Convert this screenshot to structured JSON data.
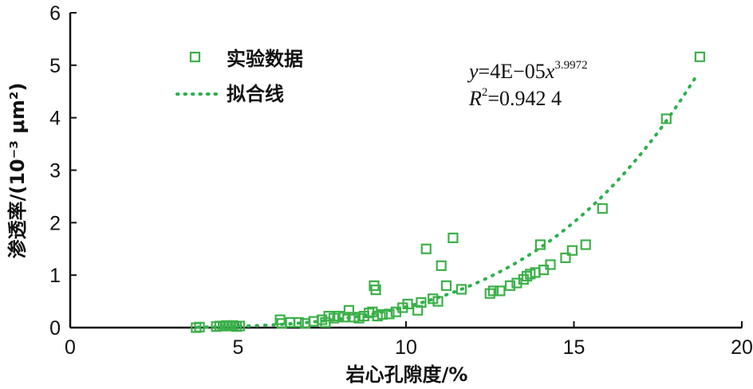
{
  "chart_data": {
    "type": "scatter",
    "xlabel": "岩心孔隙度/%",
    "ylabel": "渗透率/(10⁻³ μm²)",
    "xlim": [
      0,
      20
    ],
    "ylim": [
      0,
      6
    ],
    "x_ticks": [
      "0",
      "5",
      "10",
      "15",
      "20"
    ],
    "y_ticks": [
      "0",
      "1",
      "2",
      "3",
      "4",
      "5",
      "6"
    ],
    "legend": {
      "position": "top-left",
      "entries": [
        "实验数据",
        "拟合线"
      ]
    },
    "annotation": {
      "equation_y": "y",
      "equation_mid": "=4E−05",
      "equation_x": "x",
      "equation_exp": "3.9972",
      "r2_label": "R",
      "r2_sup": "2",
      "r2_value": "=0.942 4"
    },
    "fit": {
      "coefficient": 4e-05,
      "exponent": 3.9972,
      "x_range": [
        3.8,
        18.7
      ]
    },
    "colors": {
      "marker": "#3cb049",
      "fit": "#2db04d",
      "axis": "#111111"
    },
    "series": [
      {
        "name": "实验数据",
        "points": [
          [
            3.75,
            0.0
          ],
          [
            3.85,
            0.01
          ],
          [
            4.35,
            0.02
          ],
          [
            4.45,
            0.03
          ],
          [
            4.55,
            0.03
          ],
          [
            4.65,
            0.04
          ],
          [
            4.75,
            0.03
          ],
          [
            4.85,
            0.04
          ],
          [
            4.95,
            0.02
          ],
          [
            5.05,
            0.03
          ],
          [
            6.25,
            0.15
          ],
          [
            6.3,
            0.08
          ],
          [
            6.55,
            0.1
          ],
          [
            6.8,
            0.1
          ],
          [
            7.0,
            0.08
          ],
          [
            7.25,
            0.12
          ],
          [
            7.5,
            0.15
          ],
          [
            7.6,
            0.1
          ],
          [
            7.7,
            0.22
          ],
          [
            7.85,
            0.18
          ],
          [
            8.0,
            0.22
          ],
          [
            8.15,
            0.2
          ],
          [
            8.3,
            0.33
          ],
          [
            8.45,
            0.2
          ],
          [
            8.6,
            0.18
          ],
          [
            8.75,
            0.22
          ],
          [
            8.9,
            0.28
          ],
          [
            9.0,
            0.3
          ],
          [
            9.05,
            0.8
          ],
          [
            9.1,
            0.72
          ],
          [
            9.15,
            0.22
          ],
          [
            9.3,
            0.25
          ],
          [
            9.5,
            0.26
          ],
          [
            9.7,
            0.3
          ],
          [
            9.9,
            0.38
          ],
          [
            10.05,
            0.45
          ],
          [
            10.35,
            0.33
          ],
          [
            10.45,
            0.48
          ],
          [
            10.6,
            1.5
          ],
          [
            10.8,
            0.55
          ],
          [
            10.95,
            0.5
          ],
          [
            11.05,
            1.18
          ],
          [
            11.2,
            0.8
          ],
          [
            11.4,
            1.71
          ],
          [
            11.65,
            0.73
          ],
          [
            12.5,
            0.65
          ],
          [
            12.6,
            0.7
          ],
          [
            12.8,
            0.7
          ],
          [
            13.1,
            0.8
          ],
          [
            13.3,
            0.85
          ],
          [
            13.5,
            0.92
          ],
          [
            13.6,
            0.98
          ],
          [
            13.7,
            1.02
          ],
          [
            13.85,
            1.05
          ],
          [
            14.0,
            1.58
          ],
          [
            14.1,
            1.1
          ],
          [
            14.3,
            1.2
          ],
          [
            14.75,
            1.33
          ],
          [
            14.95,
            1.47
          ],
          [
            15.35,
            1.58
          ],
          [
            15.85,
            2.27
          ],
          [
            17.75,
            3.98
          ],
          [
            18.75,
            5.16
          ]
        ]
      }
    ]
  }
}
